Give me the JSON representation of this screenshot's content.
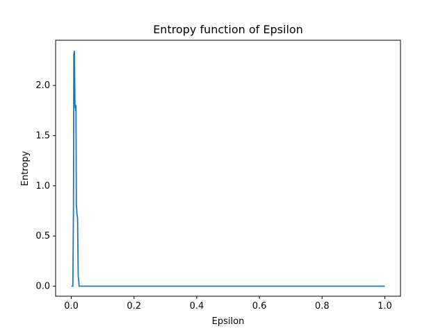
{
  "chart_data": {
    "type": "line",
    "title": "Entropy function of Epsilon",
    "xlabel": "Epsilon",
    "ylabel": "Entropy",
    "xlim": [
      -0.05,
      1.05
    ],
    "ylim": [
      -0.1,
      2.45
    ],
    "xticks": [
      0.0,
      0.2,
      0.4,
      0.6,
      0.8,
      1.0
    ],
    "xtick_labels": [
      "0.0",
      "0.2",
      "0.4",
      "0.6",
      "0.8",
      "1.0"
    ],
    "yticks": [
      0.0,
      0.5,
      1.0,
      1.5,
      2.0
    ],
    "ytick_labels": [
      "0.0",
      "0.5",
      "1.0",
      "1.5",
      "2.0"
    ],
    "grid": false,
    "line_color": "#1f77b4",
    "series": [
      {
        "x": [
          0.0,
          0.005,
          0.006,
          0.007,
          0.008,
          0.009,
          0.01,
          0.011,
          0.012,
          0.013,
          0.014,
          0.015,
          0.016,
          0.017,
          0.018,
          0.02,
          0.022,
          0.023,
          0.024,
          0.025,
          0.026,
          0.03,
          0.05,
          0.1,
          0.2,
          0.4,
          0.6,
          0.8,
          1.0
        ],
        "y": [
          0.0,
          0.0,
          0.4,
          0.8,
          2.3,
          2.33,
          2.34,
          2.0,
          1.78,
          1.8,
          1.75,
          1.8,
          0.8,
          0.78,
          0.72,
          0.68,
          0.1,
          0.07,
          0.05,
          0.0,
          0.0,
          0.0,
          0.0,
          0.0,
          0.0,
          0.0,
          0.0,
          0.0,
          0.0
        ]
      }
    ]
  }
}
